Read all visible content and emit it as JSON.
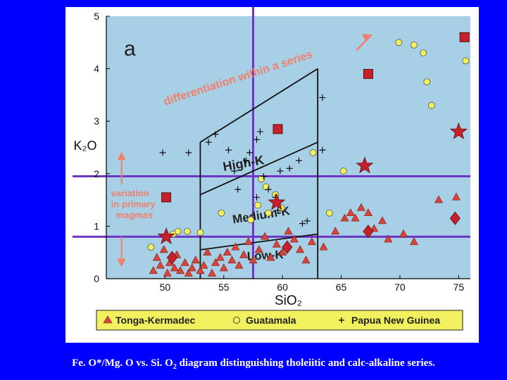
{
  "caption": {
    "text_before": "Fe. O*/Mg. O vs. Si. O",
    "sub": "2",
    "text_after": " diagram distinguishing tholeiitic and calc-alkaline series."
  },
  "chart_data": {
    "type": "scatter",
    "panel_label": "a",
    "xlabel": "SiO₂",
    "ylabel": "K₂O",
    "xlim": [
      45,
      76
    ],
    "ylim": [
      0,
      5
    ],
    "xticks": [
      50,
      55,
      60,
      65,
      70,
      75
    ],
    "yticks": [
      0,
      1,
      2,
      3,
      4,
      5
    ],
    "field_labels": [
      "High-K",
      "Medium-K",
      "Low-K"
    ],
    "annotations": [
      "differentiation within a series",
      "variation",
      "in primary",
      "magmas"
    ],
    "legend": {
      "position": "bottom",
      "entries": [
        "Tonga-Kermadec",
        "Guatamala",
        "Papua New Guinea"
      ]
    },
    "colors": {
      "plot_bg": "#a7cfe6",
      "tonga": "#d9443a",
      "guatamala": "#f1f05e",
      "png": "#000000",
      "highlight": "#c8202a",
      "arrow": "#f0806c",
      "guide_lines": "#6e35c4",
      "page_bg": "#0000ff"
    },
    "series": [
      {
        "name": "Tonga-Kermadec",
        "marker": "triangle",
        "points": [
          [
            49.0,
            0.15
          ],
          [
            49.3,
            0.4
          ],
          [
            49.6,
            0.25
          ],
          [
            49.9,
            0.55
          ],
          [
            50.2,
            0.1
          ],
          [
            50.4,
            0.3
          ],
          [
            50.8,
            0.2
          ],
          [
            51.0,
            0.45
          ],
          [
            51.3,
            0.15
          ],
          [
            51.7,
            0.3
          ],
          [
            52.0,
            0.1
          ],
          [
            52.3,
            0.2
          ],
          [
            52.6,
            0.35
          ],
          [
            53.0,
            0.15
          ],
          [
            53.3,
            0.25
          ],
          [
            53.6,
            0.5
          ],
          [
            54.0,
            0.1
          ],
          [
            54.3,
            0.3
          ],
          [
            54.7,
            0.4
          ],
          [
            55.0,
            0.2
          ],
          [
            55.3,
            0.5
          ],
          [
            55.7,
            0.35
          ],
          [
            56.0,
            0.6
          ],
          [
            56.3,
            0.25
          ],
          [
            56.7,
            0.45
          ],
          [
            57.1,
            0.7
          ],
          [
            57.5,
            0.35
          ],
          [
            58.0,
            0.55
          ],
          [
            58.5,
            0.8
          ],
          [
            59.0,
            0.4
          ],
          [
            59.5,
            0.65
          ],
          [
            60.0,
            0.5
          ],
          [
            60.5,
            0.9
          ],
          [
            61.0,
            0.75
          ],
          [
            61.5,
            0.55
          ],
          [
            62.0,
            0.35
          ],
          [
            62.5,
            0.7
          ],
          [
            63.5,
            0.6
          ],
          [
            64.5,
            0.9
          ],
          [
            65.3,
            1.15
          ],
          [
            65.8,
            1.25
          ],
          [
            66.2,
            1.15
          ],
          [
            66.7,
            1.35
          ],
          [
            67.3,
            1.25
          ],
          [
            67.8,
            0.95
          ],
          [
            68.5,
            1.1
          ],
          [
            69.0,
            0.75
          ],
          [
            70.3,
            0.85
          ],
          [
            71.2,
            0.7
          ],
          [
            73.3,
            1.5
          ],
          [
            74.8,
            1.55
          ]
        ]
      },
      {
        "name": "Guatamala",
        "marker": "circle",
        "points": [
          [
            48.8,
            0.6
          ],
          [
            50.7,
            0.85
          ],
          [
            51.1,
            0.9
          ],
          [
            51.9,
            0.9
          ],
          [
            53.0,
            0.88
          ],
          [
            54.8,
            1.25
          ],
          [
            57.3,
            1.12
          ],
          [
            57.9,
            1.4
          ],
          [
            58.2,
            1.9
          ],
          [
            58.6,
            1.75
          ],
          [
            58.8,
            1.25
          ],
          [
            59.4,
            1.6
          ],
          [
            59.9,
            1.35
          ],
          [
            62.6,
            2.4
          ],
          [
            64.0,
            1.25
          ],
          [
            65.2,
            2.05
          ],
          [
            69.9,
            4.5
          ],
          [
            71.2,
            4.45
          ],
          [
            72.0,
            4.3
          ],
          [
            72.3,
            3.75
          ],
          [
            72.7,
            3.3
          ],
          [
            75.6,
            4.15
          ]
        ]
      },
      {
        "name": "Papua New Guinea",
        "marker": "plus",
        "points": [
          [
            49.8,
            2.4
          ],
          [
            52.0,
            2.4
          ],
          [
            53.7,
            2.6
          ],
          [
            54.3,
            2.75
          ],
          [
            55.4,
            2.45
          ],
          [
            55.9,
            2.05
          ],
          [
            56.2,
            1.7
          ],
          [
            56.9,
            2.25
          ],
          [
            57.2,
            2.4
          ],
          [
            57.8,
            2.65
          ],
          [
            57.8,
            1.55
          ],
          [
            58.1,
            2.8
          ],
          [
            58.4,
            1.95
          ],
          [
            58.8,
            1.7
          ],
          [
            59.4,
            1.55
          ],
          [
            59.6,
            1.3
          ],
          [
            59.8,
            2.05
          ],
          [
            60.6,
            2.1
          ],
          [
            61.4,
            2.25
          ],
          [
            61.7,
            1.05
          ],
          [
            62.1,
            1.1
          ],
          [
            63.4,
            2.45
          ],
          [
            63.4,
            3.45
          ]
        ]
      },
      {
        "name": "",
        "marker": "square",
        "points": [
          [
            50.1,
            1.55
          ],
          [
            59.6,
            2.85
          ],
          [
            67.3,
            3.9
          ],
          [
            75.5,
            4.6
          ]
        ]
      },
      {
        "name": "",
        "marker": "star",
        "points": [
          [
            50.1,
            0.8
          ],
          [
            59.5,
            1.45
          ],
          [
            67.0,
            2.15
          ],
          [
            75.0,
            2.8
          ]
        ]
      },
      {
        "name": "",
        "marker": "diamond",
        "points": [
          [
            50.6,
            0.4
          ],
          [
            60.4,
            0.6
          ],
          [
            67.3,
            0.9
          ],
          [
            74.7,
            1.15
          ]
        ]
      }
    ],
    "field_lines": [
      [
        [
          53.0,
          0.55
        ],
        [
          63.0,
          0.85
        ]
      ],
      [
        [
          53.0,
          1.6
        ],
        [
          63.0,
          2.6
        ]
      ],
      [
        [
          53.0,
          2.6
        ],
        [
          63.0,
          4.0
        ]
      ],
      [
        [
          53.0,
          0
        ],
        [
          53.0,
          2.6
        ]
      ],
      [
        [
          63.0,
          0
        ],
        [
          63.0,
          4.0
        ]
      ]
    ],
    "guide_lines": {
      "x": [
        57.5
      ],
      "y": [
        0.8,
        1.95
      ]
    }
  }
}
